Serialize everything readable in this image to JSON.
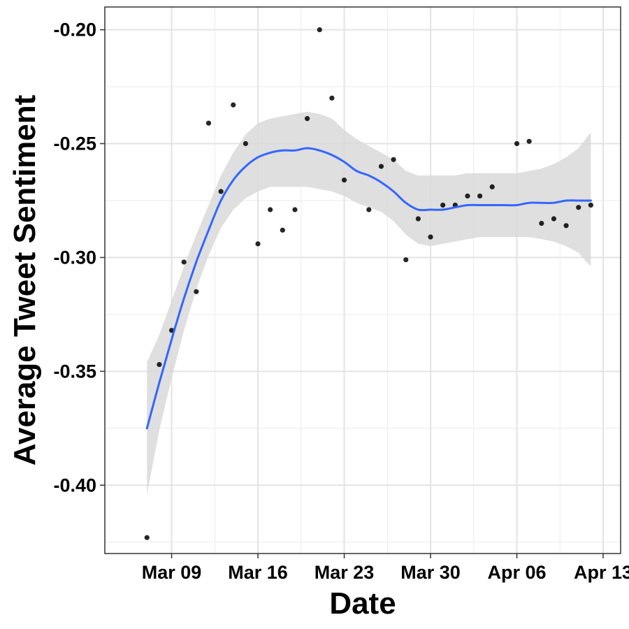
{
  "chart_data": {
    "type": "scatter",
    "title": "",
    "xlabel": "Date",
    "ylabel": "Average Tweet Sentiment",
    "x_axis": {
      "kind": "date",
      "range": [
        "2020-03-03T14:00",
        "2020-04-14T10:00"
      ],
      "ticks": [
        {
          "date": "2020-03-09",
          "label": "Mar 09"
        },
        {
          "date": "2020-03-16",
          "label": "Mar 16"
        },
        {
          "date": "2020-03-23",
          "label": "Mar 23"
        },
        {
          "date": "2020-03-30",
          "label": "Mar 30"
        },
        {
          "date": "2020-04-06",
          "label": "Apr 06"
        },
        {
          "date": "2020-04-13",
          "label": "Apr 13"
        }
      ]
    },
    "y_axis": {
      "range": [
        -0.43,
        -0.19
      ],
      "ticks": [
        -0.2,
        -0.25,
        -0.3,
        -0.35,
        -0.4
      ],
      "tick_labels": [
        "-0.20",
        "-0.25",
        "-0.30",
        "-0.35",
        "-0.40"
      ]
    },
    "grid": true,
    "points": [
      {
        "x": "2020-03-07",
        "y": -0.423
      },
      {
        "x": "2020-03-08",
        "y": -0.347
      },
      {
        "x": "2020-03-09",
        "y": -0.332
      },
      {
        "x": "2020-03-10",
        "y": -0.302
      },
      {
        "x": "2020-03-11",
        "y": -0.315
      },
      {
        "x": "2020-03-12",
        "y": -0.241
      },
      {
        "x": "2020-03-13",
        "y": -0.271
      },
      {
        "x": "2020-03-14",
        "y": -0.233
      },
      {
        "x": "2020-03-15",
        "y": -0.25
      },
      {
        "x": "2020-03-16",
        "y": -0.294
      },
      {
        "x": "2020-03-17",
        "y": -0.279
      },
      {
        "x": "2020-03-18",
        "y": -0.288
      },
      {
        "x": "2020-03-19",
        "y": -0.279
      },
      {
        "x": "2020-03-20",
        "y": -0.239
      },
      {
        "x": "2020-03-21",
        "y": -0.2
      },
      {
        "x": "2020-03-22",
        "y": -0.23
      },
      {
        "x": "2020-03-23",
        "y": -0.266
      },
      {
        "x": "2020-03-25",
        "y": -0.279
      },
      {
        "x": "2020-03-26",
        "y": -0.26
      },
      {
        "x": "2020-03-27",
        "y": -0.257
      },
      {
        "x": "2020-03-28",
        "y": -0.301
      },
      {
        "x": "2020-03-29",
        "y": -0.283
      },
      {
        "x": "2020-03-30",
        "y": -0.291
      },
      {
        "x": "2020-03-31",
        "y": -0.277
      },
      {
        "x": "2020-04-01",
        "y": -0.277
      },
      {
        "x": "2020-04-02",
        "y": -0.273
      },
      {
        "x": "2020-04-03",
        "y": -0.273
      },
      {
        "x": "2020-04-04",
        "y": -0.269
      },
      {
        "x": "2020-04-06",
        "y": -0.25
      },
      {
        "x": "2020-04-07",
        "y": -0.249
      },
      {
        "x": "2020-04-08",
        "y": -0.285
      },
      {
        "x": "2020-04-09",
        "y": -0.283
      },
      {
        "x": "2020-04-10",
        "y": -0.286
      },
      {
        "x": "2020-04-11",
        "y": -0.278
      },
      {
        "x": "2020-04-12",
        "y": -0.277
      }
    ],
    "smooth": {
      "method": "loess",
      "color": "#3366FF",
      "band_color": "#D9D9D9",
      "points": [
        {
          "x": "2020-03-07",
          "y": -0.375,
          "lower": -0.404,
          "upper": -0.346
        },
        {
          "x": "2020-03-08",
          "y": -0.355,
          "lower": -0.376,
          "upper": -0.334
        },
        {
          "x": "2020-03-09",
          "y": -0.336,
          "lower": -0.353,
          "upper": -0.319
        },
        {
          "x": "2020-03-10",
          "y": -0.318,
          "lower": -0.332,
          "upper": -0.304
        },
        {
          "x": "2020-03-11",
          "y": -0.302,
          "lower": -0.314,
          "upper": -0.29
        },
        {
          "x": "2020-03-12",
          "y": -0.288,
          "lower": -0.299,
          "upper": -0.277
        },
        {
          "x": "2020-03-13",
          "y": -0.275,
          "lower": -0.287,
          "upper": -0.264
        },
        {
          "x": "2020-03-14",
          "y": -0.266,
          "lower": -0.279,
          "upper": -0.254
        },
        {
          "x": "2020-03-15",
          "y": -0.26,
          "lower": -0.274,
          "upper": -0.246
        },
        {
          "x": "2020-03-16",
          "y": -0.256,
          "lower": -0.271,
          "upper": -0.241
        },
        {
          "x": "2020-03-17",
          "y": -0.254,
          "lower": -0.269,
          "upper": -0.239
        },
        {
          "x": "2020-03-18",
          "y": -0.253,
          "lower": -0.269,
          "upper": -0.238
        },
        {
          "x": "2020-03-19",
          "y": -0.253,
          "lower": -0.269,
          "upper": -0.237
        },
        {
          "x": "2020-03-20",
          "y": -0.252,
          "lower": -0.269,
          "upper": -0.236
        },
        {
          "x": "2020-03-21",
          "y": -0.253,
          "lower": -0.27,
          "upper": -0.237
        },
        {
          "x": "2020-03-22",
          "y": -0.255,
          "lower": -0.271,
          "upper": -0.239
        },
        {
          "x": "2020-03-23",
          "y": -0.258,
          "lower": -0.273,
          "upper": -0.244
        },
        {
          "x": "2020-03-24",
          "y": -0.262,
          "lower": -0.276,
          "upper": -0.248
        },
        {
          "x": "2020-03-25",
          "y": -0.264,
          "lower": -0.278,
          "upper": -0.251
        },
        {
          "x": "2020-03-26",
          "y": -0.267,
          "lower": -0.28,
          "upper": -0.254
        },
        {
          "x": "2020-03-27",
          "y": -0.271,
          "lower": -0.284,
          "upper": -0.257
        },
        {
          "x": "2020-03-28",
          "y": -0.276,
          "lower": -0.29,
          "upper": -0.262
        },
        {
          "x": "2020-03-29",
          "y": -0.279,
          "lower": -0.294,
          "upper": -0.264
        },
        {
          "x": "2020-03-30",
          "y": -0.279,
          "lower": -0.295,
          "upper": -0.264
        },
        {
          "x": "2020-03-31",
          "y": -0.279,
          "lower": -0.294,
          "upper": -0.264
        },
        {
          "x": "2020-04-01",
          "y": -0.278,
          "lower": -0.293,
          "upper": -0.264
        },
        {
          "x": "2020-04-02",
          "y": -0.277,
          "lower": -0.292,
          "upper": -0.263
        },
        {
          "x": "2020-04-03",
          "y": -0.277,
          "lower": -0.291,
          "upper": -0.263
        },
        {
          "x": "2020-04-04",
          "y": -0.277,
          "lower": -0.291,
          "upper": -0.263
        },
        {
          "x": "2020-04-05",
          "y": -0.277,
          "lower": -0.291,
          "upper": -0.263
        },
        {
          "x": "2020-04-06",
          "y": -0.277,
          "lower": -0.291,
          "upper": -0.263
        },
        {
          "x": "2020-04-07",
          "y": -0.276,
          "lower": -0.291,
          "upper": -0.262
        },
        {
          "x": "2020-04-08",
          "y": -0.276,
          "lower": -0.292,
          "upper": -0.261
        },
        {
          "x": "2020-04-09",
          "y": -0.276,
          "lower": -0.293,
          "upper": -0.259
        },
        {
          "x": "2020-04-10",
          "y": -0.275,
          "lower": -0.295,
          "upper": -0.256
        },
        {
          "x": "2020-04-11",
          "y": -0.275,
          "lower": -0.298,
          "upper": -0.252
        },
        {
          "x": "2020-04-12",
          "y": -0.275,
          "lower": -0.304,
          "upper": -0.245
        }
      ]
    }
  }
}
